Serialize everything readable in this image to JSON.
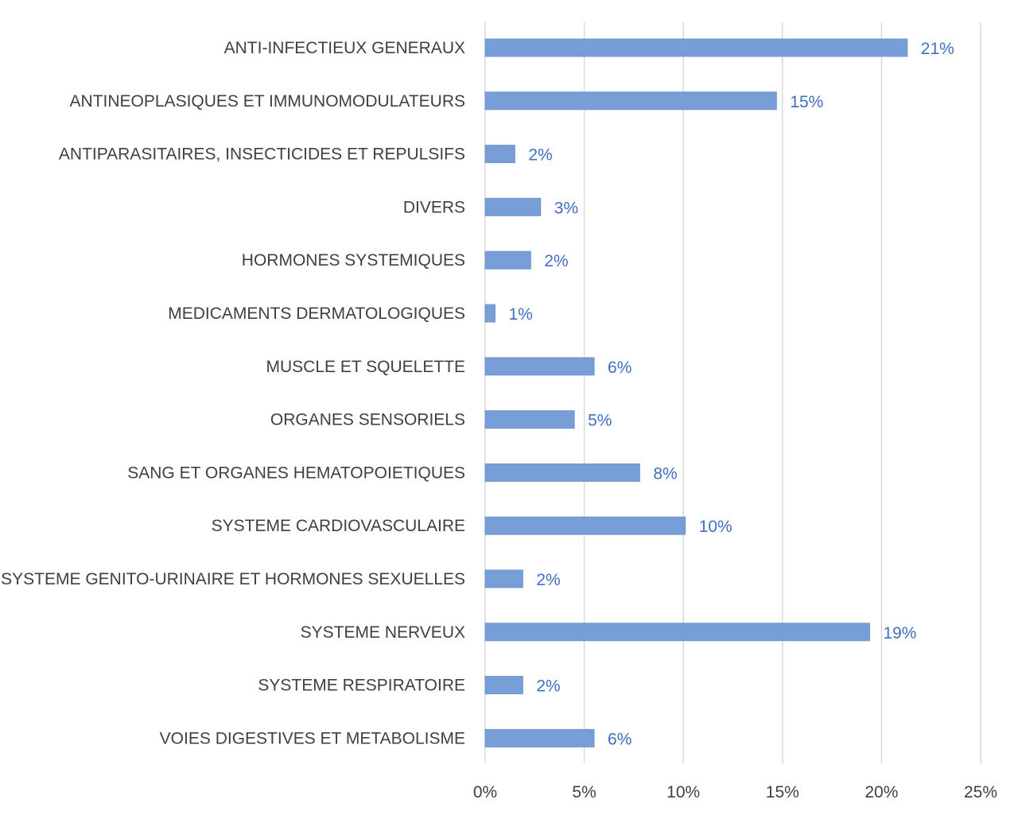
{
  "chart_data": {
    "type": "bar",
    "orientation": "horizontal",
    "title": "",
    "xlabel": "",
    "ylabel": "",
    "xlim": [
      0,
      25
    ],
    "xticks": [
      "0%",
      "5%",
      "10%",
      "15%",
      "20%",
      "25%"
    ],
    "grid": true,
    "categories": [
      "ANTI-INFECTIEUX GENERAUX",
      "ANTINEOPLASIQUES ET IMMUNOMODULATEURS",
      "ANTIPARASITAIRES, INSECTICIDES ET REPULSIFS",
      "DIVERS",
      "HORMONES SYSTEMIQUES",
      "MEDICAMENTS DERMATOLOGIQUES",
      "MUSCLE ET SQUELETTE",
      "ORGANES SENSORIELS",
      "SANG ET ORGANES HEMATOPOIETIQUES",
      "SYSTEME CARDIOVASCULAIRE",
      "SYSTEME GENITO-URINAIRE ET HORMONES SEXUELLES",
      "SYSTEME NERVEUX",
      "SYSTEME RESPIRATOIRE",
      "VOIES DIGESTIVES ET METABOLISME"
    ],
    "values": [
      21.3,
      14.7,
      1.5,
      2.8,
      2.3,
      0.5,
      5.5,
      4.5,
      7.8,
      10.1,
      1.9,
      19.4,
      1.9,
      5.5
    ],
    "data_labels": [
      "21%",
      "15%",
      "2%",
      "3%",
      "2%",
      "1%",
      "6%",
      "5%",
      "8%",
      "10%",
      "2%",
      "19%",
      "2%",
      "6%"
    ],
    "colors": {
      "bar": "#779ed6",
      "label": "#3f6fc0",
      "text": "#404040",
      "grid": "#d9d9d9"
    }
  }
}
